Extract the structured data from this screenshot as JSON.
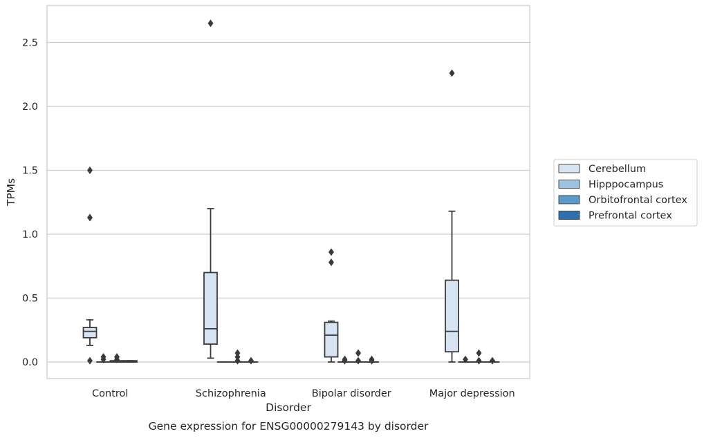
{
  "chart_data": {
    "type": "box",
    "caption": "Gene expression for ENSG00000279143 by disorder",
    "xlabel": "Disorder",
    "ylabel": "TPMs",
    "ylim": [
      -0.13,
      2.79
    ],
    "yticks": [
      0.0,
      0.5,
      1.0,
      1.5,
      2.0,
      2.5
    ],
    "ytick_labels": [
      "0.0",
      "0.5",
      "1.0",
      "1.5",
      "2.0",
      "2.5"
    ],
    "grid": "horizontal",
    "legend_position": "right",
    "categories": [
      "Control",
      "Schizophrenia",
      "Bipolar disorder",
      "Major depression"
    ],
    "series": [
      {
        "name": "Cerebellum",
        "color": "#d6e4f1",
        "boxes": [
          {
            "whislo": 0.13,
            "q1": 0.19,
            "med": 0.24,
            "q3": 0.27,
            "whishi": 0.33,
            "fliers": [
              1.5,
              1.13,
              0.01
            ]
          },
          {
            "whislo": 0.03,
            "q1": 0.14,
            "med": 0.26,
            "q3": 0.7,
            "whishi": 1.2,
            "fliers": [
              2.65
            ]
          },
          {
            "whislo": 0.0,
            "q1": 0.04,
            "med": 0.21,
            "q3": 0.31,
            "whishi": 0.32,
            "fliers": [
              0.86,
              0.78
            ]
          },
          {
            "whislo": 0.0,
            "q1": 0.08,
            "med": 0.24,
            "q3": 0.64,
            "whishi": 1.18,
            "fliers": [
              2.26
            ]
          }
        ]
      },
      {
        "name": "Hipppocampus",
        "color": "#9dc3de",
        "boxes": [
          {
            "whislo": 0.0,
            "q1": 0.0,
            "med": 0.0,
            "q3": 0.0,
            "whishi": 0.0,
            "fliers": [
              0.04,
              0.02
            ]
          },
          {
            "whislo": 0.0,
            "q1": 0.0,
            "med": 0.0,
            "q3": 0.0,
            "whishi": 0.0,
            "fliers": []
          },
          {
            "whislo": 0.0,
            "q1": 0.0,
            "med": 0.0,
            "q3": 0.0,
            "whishi": 0.0,
            "fliers": [
              0.02,
              0.01
            ]
          },
          {
            "whislo": 0.0,
            "q1": 0.0,
            "med": 0.0,
            "q3": 0.0,
            "whishi": 0.0,
            "fliers": [
              0.02
            ]
          }
        ]
      },
      {
        "name": "Orbitofrontal cortex",
        "color": "#5a9ac8",
        "boxes": [
          {
            "whislo": 0.0,
            "q1": 0.0,
            "med": 0.0,
            "q3": 0.01,
            "whishi": 0.01,
            "fliers": [
              0.04,
              0.02
            ]
          },
          {
            "whislo": 0.0,
            "q1": 0.0,
            "med": 0.0,
            "q3": 0.0,
            "whishi": 0.0,
            "fliers": [
              0.07,
              0.04,
              0.01
            ]
          },
          {
            "whislo": 0.0,
            "q1": 0.0,
            "med": 0.0,
            "q3": 0.0,
            "whishi": 0.0,
            "fliers": [
              0.07,
              0.01
            ]
          },
          {
            "whislo": 0.0,
            "q1": 0.0,
            "med": 0.0,
            "q3": 0.0,
            "whishi": 0.0,
            "fliers": [
              0.07,
              0.01
            ]
          }
        ]
      },
      {
        "name": "Prefrontal cortex",
        "color": "#2d6faf",
        "boxes": [
          {
            "whislo": 0.0,
            "q1": 0.0,
            "med": 0.0,
            "q3": 0.01,
            "whishi": 0.01,
            "fliers": []
          },
          {
            "whislo": 0.0,
            "q1": 0.0,
            "med": 0.0,
            "q3": 0.0,
            "whishi": 0.0,
            "fliers": [
              0.01
            ]
          },
          {
            "whislo": 0.0,
            "q1": 0.0,
            "med": 0.0,
            "q3": 0.0,
            "whishi": 0.0,
            "fliers": [
              0.02,
              0.01
            ]
          },
          {
            "whislo": 0.0,
            "q1": 0.0,
            "med": 0.0,
            "q3": 0.0,
            "whishi": 0.0,
            "fliers": [
              0.01
            ]
          }
        ]
      }
    ]
  }
}
